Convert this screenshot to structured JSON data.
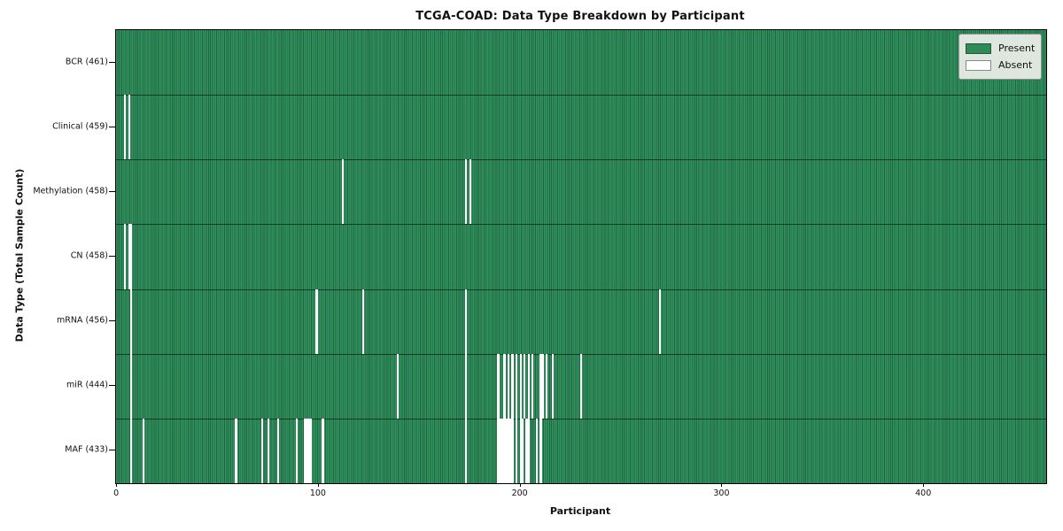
{
  "chart_data": {
    "type": "heatmap",
    "title": "TCGA-COAD: Data Type Breakdown by Participant",
    "xlabel": "Participant",
    "ylabel": "Data Type (Total Sample Count)",
    "x_ticks": [
      0,
      100,
      200,
      300,
      400
    ],
    "x_range": [
      -0.5,
      460.5
    ],
    "n_participants": 461,
    "grid": false,
    "legend_position": "upper right",
    "legend": [
      {
        "label": "Present",
        "color": "#2e8b57"
      },
      {
        "label": "Absent",
        "color": "#ffffff"
      }
    ],
    "colors": {
      "present_fill": "#2e8b57",
      "present_edge": "#1e6640",
      "absent_fill": "#ffffff",
      "frame": "#000000"
    },
    "rows": [
      {
        "name": "BCR",
        "label": "BCR (461)",
        "present_count": 461,
        "absent_count": 0,
        "absent_participants": []
      },
      {
        "name": "Clinical",
        "label": "Clinical (459)",
        "present_count": 459,
        "absent_count": 2,
        "absent_participants": [
          4,
          6
        ]
      },
      {
        "name": "Methylation",
        "label": "Methylation (458)",
        "present_count": 458,
        "absent_count": 3,
        "absent_participants": [
          112,
          173,
          175
        ]
      },
      {
        "name": "CN",
        "label": "CN (458)",
        "present_count": 458,
        "absent_count": 3,
        "absent_participants": [
          4,
          6,
          7
        ]
      },
      {
        "name": "mRNA",
        "label": "mRNA (456)",
        "present_count": 456,
        "absent_count": 5,
        "absent_participants": [
          7,
          99,
          122,
          173,
          269
        ]
      },
      {
        "name": "miR",
        "label": "miR (444)",
        "present_count": 444,
        "absent_count": 17,
        "absent_participants": [
          7,
          139,
          173,
          189,
          192,
          194,
          196,
          198,
          200,
          202,
          204,
          206,
          210,
          211,
          213,
          216,
          230
        ]
      },
      {
        "name": "MAF",
        "label": "MAF (433)",
        "present_count": 433,
        "absent_count": 28,
        "absent_participants": [
          7,
          13,
          59,
          72,
          75,
          80,
          89,
          93,
          94,
          95,
          96,
          102,
          173,
          189,
          190,
          191,
          192,
          193,
          194,
          195,
          196,
          198,
          200,
          201,
          203,
          204,
          208,
          210
        ]
      }
    ]
  }
}
